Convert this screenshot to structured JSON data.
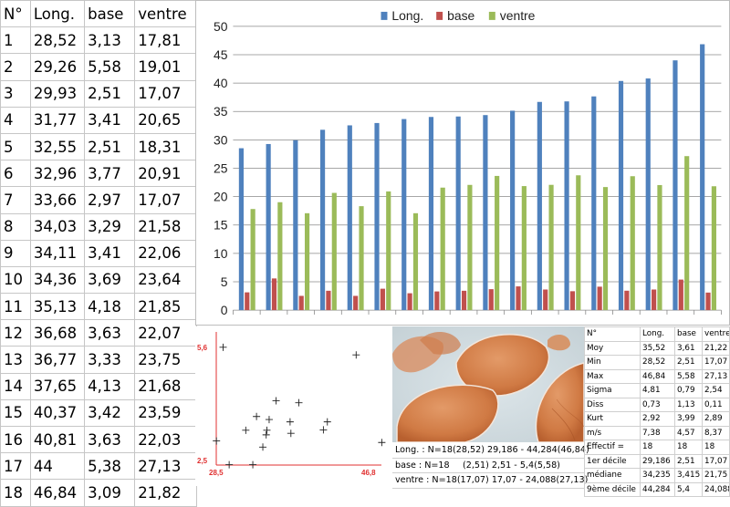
{
  "left_table": {
    "headers": [
      "N°",
      "Long.",
      "base",
      "ventre"
    ],
    "rows": [
      [
        "1",
        "28,52",
        "3,13",
        "17,81"
      ],
      [
        "2",
        "29,26",
        "5,58",
        "19,01"
      ],
      [
        "3",
        "29,93",
        "2,51",
        "17,07"
      ],
      [
        "4",
        "31,77",
        "3,41",
        "20,65"
      ],
      [
        "5",
        "32,55",
        "2,51",
        "18,31"
      ],
      [
        "6",
        "32,96",
        "3,77",
        "20,91"
      ],
      [
        "7",
        "33,66",
        "2,97",
        "17,07"
      ],
      [
        "8",
        "34,03",
        "3,29",
        "21,58"
      ],
      [
        "9",
        "34,11",
        "3,41",
        "22,06"
      ],
      [
        "10",
        "34,36",
        "3,69",
        "23,64"
      ],
      [
        "11",
        "35,13",
        "4,18",
        "21,85"
      ],
      [
        "12",
        "36,68",
        "3,63",
        "22,07"
      ],
      [
        "13",
        "36,77",
        "3,33",
        "23,75"
      ],
      [
        "14",
        "37,65",
        "4,13",
        "21,68"
      ],
      [
        "15",
        "40,37",
        "3,42",
        "23,59"
      ],
      [
        "16",
        "40,81",
        "3,63",
        "22,03"
      ],
      [
        "17",
        "44",
        "5,38",
        "27,13"
      ],
      [
        "18",
        "46,84",
        "3,09",
        "21,82"
      ]
    ]
  },
  "chart_data": [
    {
      "type": "bar",
      "categories": [
        "1",
        "2",
        "3",
        "4",
        "5",
        "6",
        "7",
        "8",
        "9",
        "10",
        "11",
        "12",
        "13",
        "14",
        "15",
        "16",
        "17",
        "18"
      ],
      "series": [
        {
          "name": "Long.",
          "color": "#4f81bd",
          "values": [
            28.52,
            29.26,
            29.93,
            31.77,
            32.55,
            32.96,
            33.66,
            34.03,
            34.11,
            34.36,
            35.13,
            36.68,
            36.77,
            37.65,
            40.37,
            40.81,
            44,
            46.84
          ]
        },
        {
          "name": "base",
          "color": "#c0504d",
          "values": [
            3.13,
            5.58,
            2.51,
            3.41,
            2.51,
            3.77,
            2.97,
            3.29,
            3.41,
            3.69,
            4.18,
            3.63,
            3.33,
            4.13,
            3.42,
            3.63,
            5.38,
            3.09
          ]
        },
        {
          "name": "ventre",
          "color": "#9bbb59",
          "values": [
            17.81,
            19.01,
            17.07,
            20.65,
            18.31,
            20.91,
            17.07,
            21.58,
            22.06,
            23.64,
            21.85,
            22.07,
            23.75,
            21.68,
            23.59,
            22.03,
            27.13,
            21.82
          ]
        }
      ],
      "yticks": [
        0,
        5,
        10,
        15,
        20,
        25,
        30,
        35,
        40,
        45,
        50
      ],
      "ylim": [
        0,
        50
      ],
      "grid": true,
      "legend": "top"
    },
    {
      "type": "scatter",
      "x": [
        28.52,
        29.26,
        29.93,
        31.77,
        32.55,
        32.96,
        33.66,
        34.03,
        34.11,
        34.36,
        35.13,
        36.68,
        36.77,
        37.65,
        40.37,
        40.81,
        44,
        46.84
      ],
      "y": [
        3.13,
        5.58,
        2.51,
        3.41,
        2.51,
        3.77,
        2.97,
        3.29,
        3.41,
        3.69,
        4.18,
        3.63,
        3.33,
        4.13,
        3.42,
        3.63,
        5.38,
        3.09
      ],
      "xlim": [
        28.5,
        46.8
      ],
      "ylim": [
        2.5,
        5.6
      ],
      "x_min_label": "28,5",
      "x_max_label": "46,8",
      "y_min_label": "2,5",
      "y_max_label": "5,6",
      "marker": "+",
      "axis_color": "#e03030"
    }
  ],
  "info": [
    {
      "label": "Long. : N=18",
      "value": "(28,52) 29,186 - 44,284(46,84)"
    },
    {
      "label": "base : N=18",
      "value": "(2,51) 2,51 - 5,4(5,58)"
    },
    {
      "label": "ventre : N=18",
      "value": "(17,07) 17,07 - 24,088(27,13)"
    }
  ],
  "stats_table": {
    "headers": [
      "N°",
      "Long.",
      "base",
      "ventre"
    ],
    "rows": [
      [
        "Moy",
        "35,52",
        "3,61",
        "21,22"
      ],
      [
        "Min",
        "28,52",
        "2,51",
        "17,07"
      ],
      [
        "Max",
        "46,84",
        "5,58",
        "27,13"
      ],
      [
        "Sigma",
        "4,81",
        "0,79",
        "2,54"
      ],
      [
        "Diss",
        "0,73",
        "1,13",
        "0,11"
      ],
      [
        "Kurt",
        "2,92",
        "3,99",
        "2,89"
      ],
      [
        "m/s",
        "7,38",
        "4,57",
        "8,37"
      ],
      [
        "Effectif =",
        "18",
        "18",
        "18"
      ],
      [
        "1er décile",
        "29,186",
        "2,51",
        "17,07"
      ],
      [
        "médiane",
        "34,235",
        "3,415",
        "21,75"
      ],
      [
        "9ème décile",
        "44,284",
        "5,4",
        "24,088"
      ]
    ]
  }
}
